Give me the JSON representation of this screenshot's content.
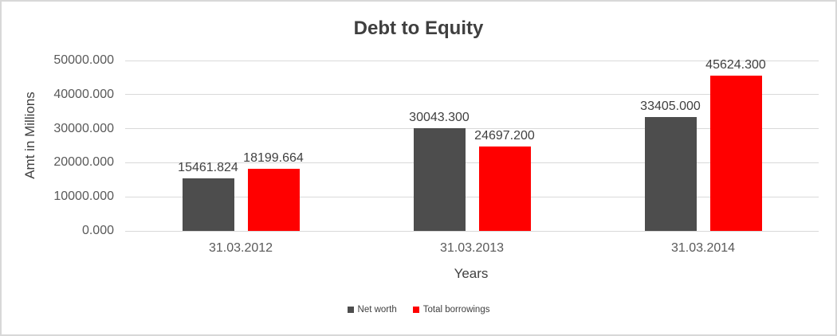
{
  "window": {
    "background": "#ffffff",
    "border_color": "#d8d8d8"
  },
  "chart_data": {
    "type": "bar",
    "title": "Debt to Equity",
    "xlabel": "Years",
    "ylabel": "Amt in Millions",
    "categories": [
      "31.03.2012",
      "31.03.2013",
      "31.03.2014"
    ],
    "series": [
      {
        "name": "Net worth",
        "color": "#4d4d4d",
        "values": [
          15461.824,
          30043.3,
          33405.0
        ],
        "labels": [
          "15461.824",
          "30043.300",
          "33405.000"
        ]
      },
      {
        "name": "Total borrowings",
        "color": "#ff0000",
        "values": [
          18199.664,
          24697.2,
          45624.3
        ],
        "labels": [
          "18199.664",
          "24697.200",
          "45624.300"
        ]
      }
    ],
    "ylim": [
      0,
      50000
    ],
    "ytick_step": 10000,
    "yticks": [
      "0.000",
      "10000.000",
      "20000.000",
      "30000.000",
      "40000.000",
      "50000.000"
    ],
    "grid": true,
    "legend_position": "bottom-center",
    "gridline_color": "#d9d9d9",
    "title_color": "#3f3f3f",
    "label_color": "#404040",
    "axis_text_color": "#595959"
  }
}
